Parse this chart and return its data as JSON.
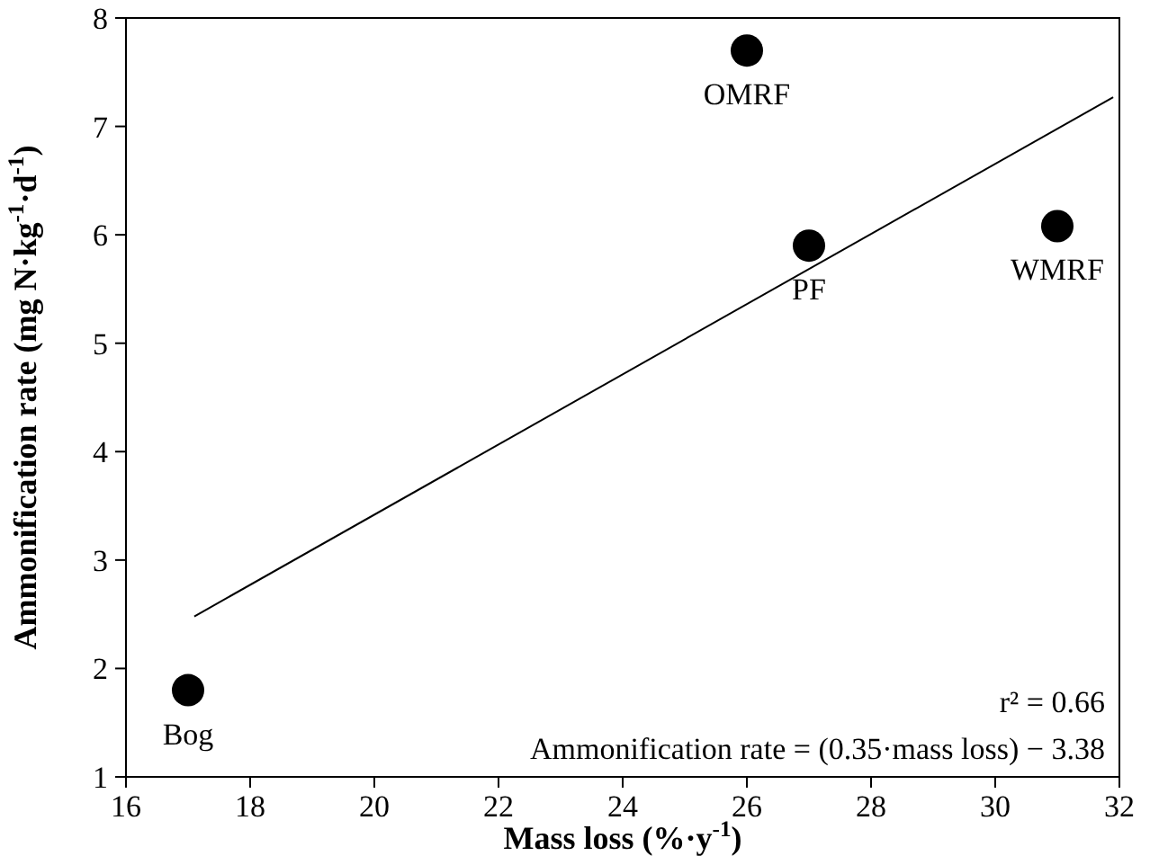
{
  "chart_data": {
    "type": "scatter",
    "xlabel": "Mass loss (%·y$^{-1}$)",
    "ylabel": "Ammonification rate (mg N·kg$^{-1}$·d$^{-1}$)",
    "xlim": [
      16,
      32
    ],
    "xticks": [
      16,
      18,
      20,
      22,
      24,
      26,
      28,
      30,
      32
    ],
    "ylim": [
      1,
      8
    ],
    "yticks": [
      1,
      2,
      3,
      4,
      5,
      6,
      7,
      8
    ],
    "grid": false,
    "marker": "circle",
    "series": [
      {
        "type": "scatter",
        "color": "#000000",
        "x": [
          17,
          26,
          27,
          31
        ],
        "values": [
          1.8,
          7.7,
          5.9,
          6.08
        ]
      },
      {
        "type": "line",
        "color": "#000000",
        "marker": "none",
        "x": [
          17.1,
          31.9
        ],
        "values": [
          2.48,
          7.27
        ]
      }
    ],
    "annotations": [
      {
        "text": "Bog",
        "x": 17,
        "y": 1.8
      },
      {
        "text": "OMRF",
        "x": 26,
        "y": 7.7
      },
      {
        "text": "PF",
        "x": 27,
        "y": 5.9
      },
      {
        "text": "WMRF",
        "x": 31,
        "y": 6.08
      },
      "r² = 0.66",
      "Ammonification rate = (0.35·mass loss) − 3.38"
    ]
  }
}
